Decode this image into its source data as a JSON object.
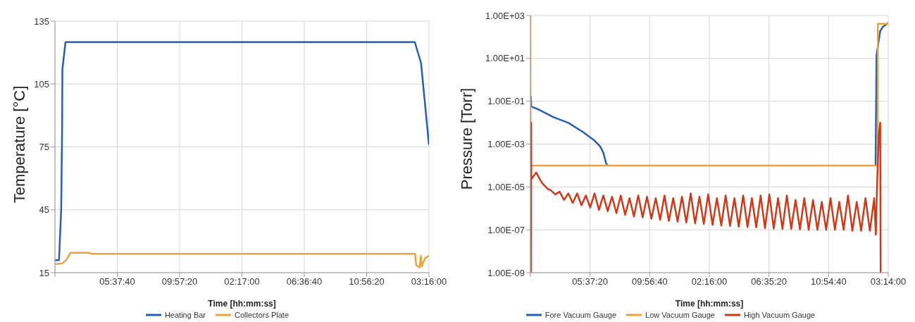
{
  "chart_data": [
    {
      "type": "line",
      "xlabel": "Time [hh:mm:ss]",
      "ylabel": "Temperature [°C]",
      "xlim": [
        "--01-01T01:18:00",
        "--01-02T03:16:00"
      ],
      "xticks": [
        {
          "value": "--01-01T01:18:00",
          "label": null
        },
        {
          "value": "--01-01T05:37:40",
          "label": "05:37:40"
        },
        {
          "value": "--01-01T09:57:20",
          "label": "09:57:20"
        },
        {
          "value": "--01-01T14:17:00",
          "label": "02:17:00"
        },
        {
          "value": "--01-01T18:36:40",
          "label": "06:36:40"
        },
        {
          "value": "--01-01T22:56:20",
          "label": "10:56:20"
        },
        {
          "value": "--01-02T03:16:00",
          "label": "03:16:00"
        }
      ],
      "ylim": [
        15,
        135
      ],
      "yticks": [
        15,
        45,
        75,
        105,
        135
      ],
      "grid": true,
      "legend": "bottom",
      "series": [
        {
          "name": "Heating Bar",
          "color": "#2a5db0",
          "x": [
            "--01-01T01:18",
            "--01-01T01:35",
            "--01-01T01:44",
            "--01-01T01:48",
            "--01-01T01:49",
            "--01-01T02:02",
            "--01-02T02:17",
            "--01-02T02:43",
            "--01-02T03:16"
          ],
          "values": [
            21,
            21,
            45,
            85,
            112,
            125,
            125,
            115,
            76
          ]
        },
        {
          "name": "Collectors Plate",
          "color": "#e8a33c",
          "x": [
            "--01-01T01:18",
            "--01-01T01:49",
            "--01-01T02:05",
            "--01-01T02:23",
            "--01-01T03:38",
            "--01-01T03:54",
            "--01-02T02:18",
            "--01-02T02:23",
            "--01-02T02:37",
            "--01-02T02:42",
            "--01-02T02:46",
            "--01-02T03:00",
            "--01-02T03:16"
          ],
          "values": [
            19,
            19.5,
            21,
            24.5,
            24.5,
            24,
            24,
            18.5,
            17.5,
            23,
            18,
            22,
            23
          ]
        }
      ]
    },
    {
      "type": "line",
      "xlabel": "Time [hh:mm:ss]",
      "ylabel": "Pressure [Torr]",
      "xlim": [
        "--01-01T01:18:00",
        "--01-02T03:14:00"
      ],
      "xticks": [
        {
          "value": "--01-01T01:18:00",
          "label": null
        },
        {
          "value": "--01-01T05:37:20",
          "label": "05:37:20"
        },
        {
          "value": "--01-01T09:56:40",
          "label": "09:56:40"
        },
        {
          "value": "--01-01T14:16:00",
          "label": "02:16:00"
        },
        {
          "value": "--01-01T18:35:20",
          "label": "06:35:20"
        },
        {
          "value": "--01-01T22:54:40",
          "label": "10:54:40"
        },
        {
          "value": "--01-02T03:14:00",
          "label": "03:14:00"
        }
      ],
      "ylim": [
        1e-09,
        1000
      ],
      "yticks": [
        {
          "value": 1e-09,
          "label": "1.00E-09"
        },
        {
          "value": 1e-07,
          "label": "1.00E-07"
        },
        {
          "value": 1e-05,
          "label": "1.00E-05"
        },
        {
          "value": 0.001,
          "label": "1.00E-03"
        },
        {
          "value": 0.1,
          "label": "1.00E-01"
        },
        {
          "value": 10,
          "label": "1.00E+01"
        },
        {
          "value": 1000,
          "label": "1.00E+03"
        }
      ],
      "log": "y",
      "grid": true,
      "legend": "bottom",
      "series": [
        {
          "name": "Fore Vacuum Gauge",
          "color": "#2a5db0",
          "x": [
            "--01-01T01:20",
            "--01-01T01:22",
            "--01-01T01:56",
            "--01-01T02:59",
            "--01-01T04:03",
            "--01-01T05:06",
            "--01-01T05:57",
            "--01-01T06:22",
            "--01-01T06:35",
            "--01-01T06:47",
            "--01-01T06:54",
            "--01-01T07:00",
            "--01-02T02:19",
            "--01-02T02:23",
            "--01-02T02:39",
            "--01-02T02:51",
            "--01-02T03:14"
          ],
          "values": [
            0.17,
            0.056,
            0.04,
            0.018,
            0.0098,
            0.0037,
            0.00145,
            0.00076,
            0.0004,
            0.00013,
            0.0001,
            null,
            0.0001,
            14,
            186,
            300,
            450
          ]
        },
        {
          "name": "Low Vacuum Gauge",
          "color": "#e8a33c",
          "x": [
            "--01-01T01:18",
            "--01-01T01:19",
            "--01-02T02:19",
            "--01-02T02:28",
            "--01-02T02:29",
            "--01-02T03:14"
          ],
          "values": [
            1000,
            0.0001,
            0.0001,
            0.0001,
            410,
            410
          ]
        },
        {
          "name": "High Vacuum Gauge",
          "color": "#cc3a1a",
          "x": [
            "--01-01T01:20",
            "--01-01T01:21",
            "--01-01T01:22",
            "--01-01T01:43",
            "--01-01T02:09",
            "--01-01T02:34",
            "--01-01T02:47",
            "--01-01T03:06",
            "--01-01T03:25",
            "--01-01T03:44",
            "--01-01T04:03",
            "--01-01T04:22",
            "--01-01T04:41",
            "--01-01T05:00",
            "--01-01T05:19",
            "--01-01T05:38",
            "--01-01T05:57",
            "--01-01T06:16",
            "--01-01T06:35",
            "--01-01T06:54",
            "--01-01T07:13",
            "--01-01T07:32",
            "--01-01T07:51",
            "--01-01T08:10",
            "--01-01T08:29",
            "--01-01T08:48",
            "--01-01T09:07",
            "--01-01T09:26",
            "--01-01T09:45",
            "--01-01T10:04",
            "--01-01T10:23",
            "--01-01T10:42",
            "--01-01T11:01",
            "--01-01T11:20",
            "--01-01T11:39",
            "--01-01T11:58",
            "--01-01T12:17",
            "--01-01T12:36",
            "--01-01T12:55",
            "--01-01T13:14",
            "--01-01T13:33",
            "--01-01T13:52",
            "--01-01T14:11",
            "--01-01T14:30",
            "--01-01T14:49",
            "--01-01T15:08",
            "--01-01T15:27",
            "--01-01T15:46",
            "--01-01T16:05",
            "--01-01T16:24",
            "--01-01T16:43",
            "--01-01T17:02",
            "--01-01T17:21",
            "--01-01T17:40",
            "--01-01T17:59",
            "--01-01T18:18",
            "--01-01T18:37",
            "--01-01T18:56",
            "--01-01T19:15",
            "--01-01T19:34",
            "--01-01T19:53",
            "--01-01T20:12",
            "--01-01T20:31",
            "--01-01T20:50",
            "--01-01T21:09",
            "--01-01T21:28",
            "--01-01T21:47",
            "--01-01T22:06",
            "--01-01T22:25",
            "--01-01T22:44",
            "--01-01T23:03",
            "--01-01T23:22",
            "--01-01T23:41",
            "--01-02T00:00",
            "--01-02T00:19",
            "--01-02T00:38",
            "--01-02T00:57",
            "--01-02T01:16",
            "--01-02T01:35",
            "--01-02T01:54",
            "--01-02T02:13",
            "--01-02T02:20",
            "--01-02T02:26",
            "--01-02T02:33",
            "--01-02T02:39",
            "--01-02T02:41"
          ],
          "values": [
            1e-09,
            0.01,
            2.3e-05,
            4.7e-05,
            1.5e-05,
            8e-06,
            7e-06,
            4.5e-06,
            6e-06,
            2.5e-06,
            5e-06,
            1.8e-06,
            5e-06,
            1.4e-06,
            4e-06,
            1.1e-06,
            5e-06,
            8.5e-07,
            4e-06,
            7.5e-07,
            3.5e-06,
            6e-07,
            4e-06,
            5e-07,
            3e-06,
            4.2e-07,
            4e-06,
            3.8e-07,
            3.5e-06,
            3.3e-07,
            3e-06,
            2.9e-07,
            4e-06,
            2.6e-07,
            3e-06,
            2.4e-07,
            3.5e-06,
            2.2e-07,
            5e-06,
            2e-07,
            3.5e-06,
            1.9e-07,
            4.5e-06,
            1.7e-07,
            3e-06,
            1.6e-07,
            4e-06,
            1.5e-07,
            3e-06,
            1.4e-07,
            4e-06,
            1.35e-07,
            3e-06,
            1.3e-07,
            4e-06,
            1.2e-07,
            4.5e-06,
            1.15e-07,
            3e-06,
            1.1e-07,
            4e-06,
            1.1e-07,
            2.5e-06,
            1.05e-07,
            3e-06,
            1e-07,
            2.5e-06,
            1e-07,
            2e-06,
            1e-07,
            3e-06,
            1e-07,
            2e-06,
            1e-07,
            4e-06,
            9e-08,
            2e-06,
            9e-08,
            3e-06,
            9e-08,
            3e-06,
            6e-08,
            2e-05,
            0.0028,
            0.01,
            1e-09
          ]
        }
      ]
    }
  ]
}
